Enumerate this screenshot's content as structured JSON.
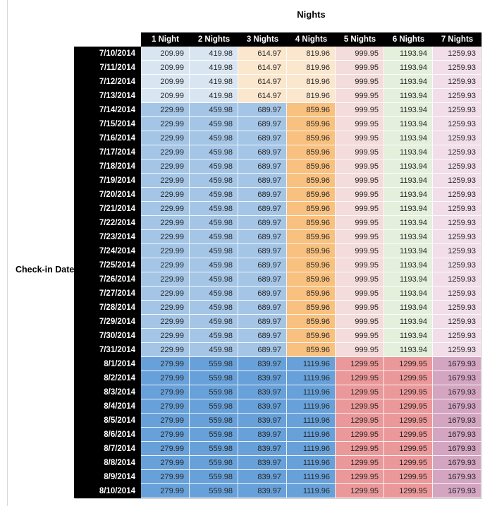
{
  "title": "Nights",
  "row_axis_label": "Check-in Date",
  "columns": [
    "1 Night",
    "2 Nights",
    "3 Nights",
    "4 Nights",
    "5 Nights",
    "6 Nights",
    "7 Nights"
  ],
  "palette": {
    "light_blue": "#D9E6F2",
    "medium_blue": "#A4C5E6",
    "bright_blue": "#68A1D9",
    "light_orange": "#FBE7CE",
    "medium_orange": "#F9C17F",
    "light_red": "#F3DCDB",
    "medium_red": "#EB989A",
    "light_green": "#E5F0DC",
    "light_pink": "#F1DEE9",
    "medium_pink": "#D3A5C1",
    "header_bg": "#000000",
    "header_text": "#FFFFFF",
    "cell_text": "#262626"
  },
  "bands": {
    "early": {
      "values": [
        "209.99",
        "419.98",
        "614.97",
        "819.96",
        "999.95",
        "1193.94",
        "1259.93"
      ],
      "colors": [
        "light_blue",
        "light_blue",
        "light_orange",
        "light_orange",
        "light_red",
        "light_green",
        "light_pink"
      ]
    },
    "mid": {
      "values": [
        "229.99",
        "459.98",
        "689.97",
        "859.96",
        "999.95",
        "1193.94",
        "1259.93"
      ],
      "colors": [
        "medium_blue",
        "medium_blue",
        "medium_blue",
        "medium_orange",
        "light_red",
        "light_green",
        "light_pink"
      ]
    },
    "late": {
      "values": [
        "279.99",
        "559.98",
        "839.97",
        "1119.96",
        "1299.95",
        "1299.95",
        "1679.93"
      ],
      "colors": [
        "bright_blue",
        "bright_blue",
        "bright_blue",
        "bright_blue",
        "medium_red",
        "medium_red",
        "medium_pink"
      ]
    }
  },
  "rows": [
    {
      "date": "7/10/2014",
      "band": "early"
    },
    {
      "date": "7/11/2014",
      "band": "early"
    },
    {
      "date": "7/12/2014",
      "band": "early"
    },
    {
      "date": "7/13/2014",
      "band": "early"
    },
    {
      "date": "7/14/2014",
      "band": "mid"
    },
    {
      "date": "7/15/2014",
      "band": "mid"
    },
    {
      "date": "7/16/2014",
      "band": "mid"
    },
    {
      "date": "7/17/2014",
      "band": "mid"
    },
    {
      "date": "7/18/2014",
      "band": "mid"
    },
    {
      "date": "7/19/2014",
      "band": "mid"
    },
    {
      "date": "7/20/2014",
      "band": "mid"
    },
    {
      "date": "7/21/2014",
      "band": "mid"
    },
    {
      "date": "7/22/2014",
      "band": "mid"
    },
    {
      "date": "7/23/2014",
      "band": "mid"
    },
    {
      "date": "7/24/2014",
      "band": "mid"
    },
    {
      "date": "7/25/2014",
      "band": "mid"
    },
    {
      "date": "7/26/2014",
      "band": "mid"
    },
    {
      "date": "7/27/2014",
      "band": "mid"
    },
    {
      "date": "7/28/2014",
      "band": "mid"
    },
    {
      "date": "7/29/2014",
      "band": "mid"
    },
    {
      "date": "7/30/2014",
      "band": "mid"
    },
    {
      "date": "7/31/2014",
      "band": "mid"
    },
    {
      "date": "8/1/2014",
      "band": "late"
    },
    {
      "date": "8/2/2014",
      "band": "late"
    },
    {
      "date": "8/3/2014",
      "band": "late"
    },
    {
      "date": "8/4/2014",
      "band": "late"
    },
    {
      "date": "8/5/2014",
      "band": "late"
    },
    {
      "date": "8/6/2014",
      "band": "late"
    },
    {
      "date": "8/7/2014",
      "band": "late"
    },
    {
      "date": "8/8/2014",
      "band": "late"
    },
    {
      "date": "8/9/2014",
      "band": "late"
    },
    {
      "date": "8/10/2014",
      "band": "late"
    }
  ]
}
